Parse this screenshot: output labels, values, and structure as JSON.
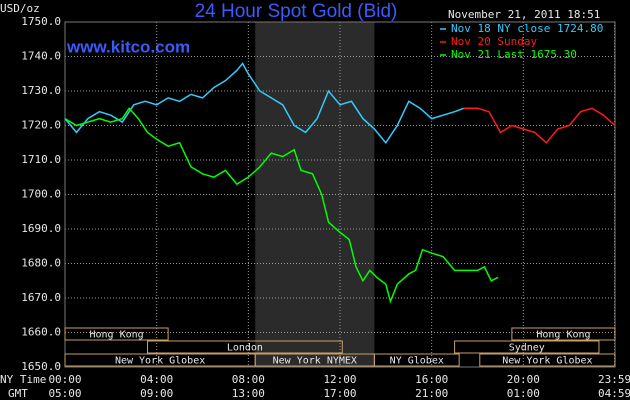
{
  "chart_data": {
    "type": "line",
    "title": "24 Hour Spot Gold (Bid)",
    "y_unit": "USD/oz",
    "watermark": "www.kitco.com",
    "timestamp": "November 21, 2011 18:51",
    "x_axis_labels": [
      "NY Time",
      "GMT"
    ],
    "xlim": [
      0,
      24
    ],
    "ylim": [
      1650,
      1750
    ],
    "grid": true,
    "yticks": [
      {
        "value": 1650,
        "label": "1650.0"
      },
      {
        "value": 1660,
        "label": "1660.0"
      },
      {
        "value": 1670,
        "label": "1670.0"
      },
      {
        "value": 1680,
        "label": "1680.0"
      },
      {
        "value": 1690,
        "label": "1690.0"
      },
      {
        "value": 1700,
        "label": "1700.0"
      },
      {
        "value": 1710,
        "label": "1710.0"
      },
      {
        "value": 1720,
        "label": "1720.0"
      },
      {
        "value": 1730,
        "label": "1730.0"
      },
      {
        "value": 1740,
        "label": "1740.0"
      },
      {
        "value": 1750,
        "label": "1750.0"
      }
    ],
    "xticks": [
      {
        "value": 0,
        "label": "00:00"
      },
      {
        "value": 4,
        "label": "04:00"
      },
      {
        "value": 8,
        "label": "08:00"
      },
      {
        "value": 12,
        "label": "12:00"
      },
      {
        "value": 16,
        "label": "16:00"
      },
      {
        "value": 20,
        "label": "20:00"
      },
      {
        "value": 23.98,
        "label": "23:59"
      }
    ],
    "xticks_gmt": [
      {
        "value": 0,
        "label": "05:00"
      },
      {
        "value": 4,
        "label": "09:00"
      },
      {
        "value": 8,
        "label": "13:00"
      },
      {
        "value": 12,
        "label": "17:00"
      },
      {
        "value": 16,
        "label": "21:00"
      },
      {
        "value": 20,
        "label": "01:00"
      },
      {
        "value": 23.98,
        "label": "04:59"
      }
    ],
    "highlight_range": [
      8.3,
      13.5
    ],
    "session_rows": [
      [
        {
          "label": "Hong Kong",
          "start": 0,
          "end": 4.5
        },
        {
          "label": "Hong Kong",
          "start": 19.5,
          "end": 24
        }
      ],
      [
        {
          "label": "London",
          "start": 3.6,
          "end": 12.1
        },
        {
          "label": "Sydney",
          "start": 17,
          "end": 23.3
        }
      ],
      [
        {
          "label": "New York Globex",
          "start": 0,
          "end": 8.3
        },
        {
          "label": "New York NYMEX",
          "start": 8.3,
          "end": 13.5
        },
        {
          "label": "NY Globex",
          "start": 13.5,
          "end": 17.2
        },
        {
          "label": "New York Globex",
          "start": 18.1,
          "end": 24
        }
      ]
    ],
    "series": [
      {
        "name": "Nov 18 NY close 1724.80",
        "color": "#33ccff",
        "x": [
          0,
          0.5,
          1,
          1.5,
          2,
          2.5,
          3,
          3.5,
          4,
          4.5,
          5,
          5.5,
          6,
          6.5,
          7,
          7.5,
          7.75,
          8,
          8.5,
          9,
          9.5,
          10,
          10.5,
          11,
          11.5,
          12,
          12.5,
          13,
          13.5,
          14,
          14.5,
          15,
          15.5,
          16,
          16.5,
          17,
          17.4
        ],
        "values": [
          1722,
          1718,
          1722,
          1724,
          1723,
          1721,
          1726,
          1727,
          1726,
          1728,
          1727,
          1729,
          1728,
          1731,
          1733,
          1736,
          1738,
          1735,
          1730,
          1728,
          1726,
          1720,
          1718,
          1722,
          1730,
          1726,
          1727,
          1722,
          1719,
          1715,
          1720,
          1727,
          1725,
          1722,
          1723,
          1724,
          1725
        ]
      },
      {
        "name": "Nov 20 Sunday",
        "color": "#ff1a1a",
        "x": [
          17.4,
          18,
          18.5,
          19,
          19.5,
          20,
          20.5,
          21,
          21.5,
          22,
          22.5,
          23,
          23.5,
          24
        ],
        "values": [
          1725,
          1725,
          1724,
          1718,
          1720,
          1719,
          1718,
          1715,
          1719,
          1720,
          1724,
          1725,
          1723,
          1720
        ]
      },
      {
        "name": "Nov 21 Last 1675.30",
        "color": "#00ff00",
        "x": [
          0,
          0.5,
          1,
          1.5,
          2,
          2.5,
          2.8,
          3.2,
          3.6,
          4,
          4.5,
          5,
          5.5,
          6,
          6.5,
          7,
          7.5,
          8,
          8.5,
          9,
          9.5,
          10,
          10.3,
          10.8,
          11.2,
          11.5,
          12,
          12.4,
          12.7,
          13,
          13.3,
          13.6,
          14,
          14.2,
          14.5,
          15,
          15.3,
          15.6,
          16,
          16.5,
          17,
          17.5,
          18,
          18.3,
          18.6,
          18.9
        ],
        "values": [
          1722,
          1720,
          1721,
          1722,
          1721,
          1722,
          1725,
          1722,
          1718,
          1716,
          1714,
          1715,
          1708,
          1706,
          1705,
          1707,
          1703,
          1705,
          1708,
          1712,
          1711,
          1713,
          1707,
          1706,
          1700,
          1692,
          1689,
          1687,
          1679,
          1675,
          1678,
          1676,
          1674,
          1669,
          1674,
          1677,
          1678,
          1684,
          1683,
          1682,
          1678,
          1678,
          1678,
          1679,
          1675,
          1676
        ]
      }
    ]
  }
}
